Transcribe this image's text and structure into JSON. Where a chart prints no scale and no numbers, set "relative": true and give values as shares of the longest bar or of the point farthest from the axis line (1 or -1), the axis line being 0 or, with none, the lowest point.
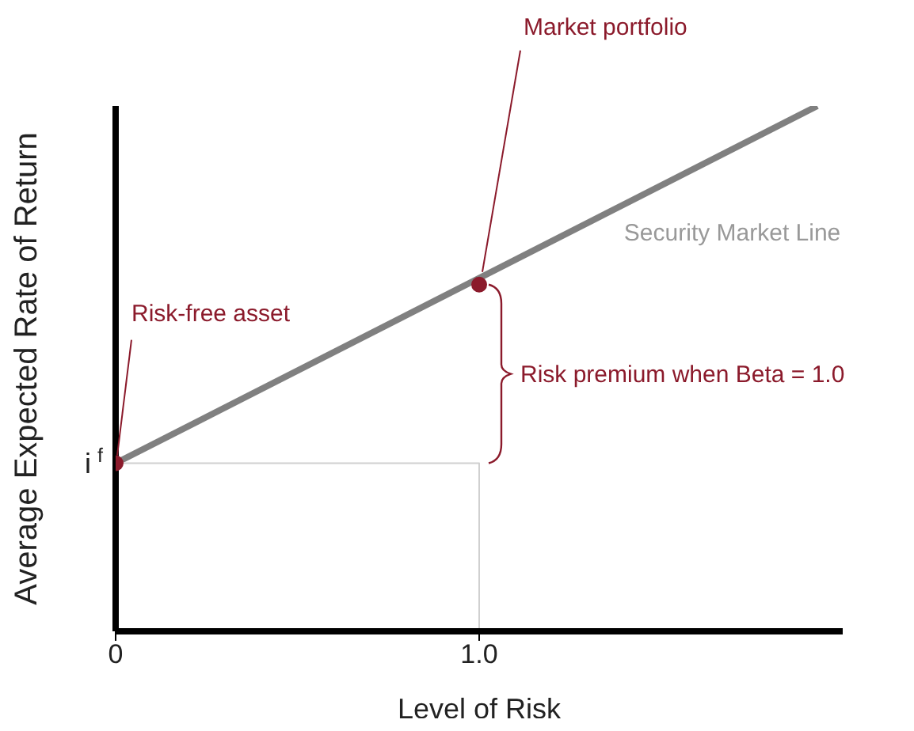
{
  "chart_data": {
    "type": "line",
    "relative": true,
    "xlabel": "Level of Risk",
    "ylabel": "Average Expected Rate of Return",
    "xlim": [
      0,
      2.0
    ],
    "xticks": [
      0,
      {
        "value": 1.0,
        "label": "1.0"
      }
    ],
    "series": [
      {
        "name": "Security Market Line",
        "color": "#808080",
        "x": [
          0,
          1.93
        ],
        "values": [
          0.32,
          1.0
        ]
      },
      {
        "color": "#d0d0d0",
        "x": [
          0,
          1.0,
          1.0
        ],
        "values": [
          0.32,
          0.32,
          0
        ]
      },
      {
        "type": "scatter",
        "color": "#8b1a2b",
        "x": [
          0,
          1.0
        ],
        "values": [
          0.32,
          0.66
        ]
      }
    ],
    "annotations": [
      "Risk-free asset",
      "Market portfolio",
      "Risk premium when Beta = 1.0",
      "i$^{f}$"
    ]
  }
}
